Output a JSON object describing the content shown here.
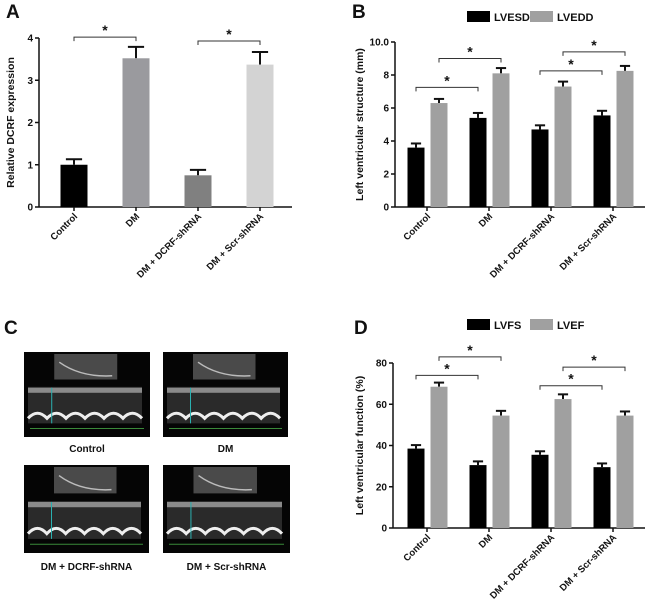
{
  "panels": {
    "a": "A",
    "b": "B",
    "c": "C",
    "d": "D"
  },
  "chart_data": [
    {
      "type": "bar",
      "panel": "A",
      "ylabel": "Relative DCRF expression",
      "ylim": [
        0,
        4
      ],
      "yticks": [
        "0",
        "1",
        "2",
        "3",
        "4"
      ],
      "categories": [
        "Control",
        "DM",
        "DM + DCRF-shRNA",
        "DM + Scr-shRNA"
      ],
      "series": [
        {
          "name": "",
          "values": [
            1.0,
            3.52,
            0.75,
            3.37
          ],
          "errors": [
            0.13,
            0.27,
            0.13,
            0.3
          ],
          "colors": [
            "#000000",
            "#9a9a9e",
            "#808080",
            "#d3d3d3"
          ]
        }
      ],
      "significance": [
        {
          "from": [
            0,
            0
          ],
          "to": [
            1,
            0
          ],
          "y": 4.02,
          "label": "*"
        },
        {
          "from": [
            2,
            0
          ],
          "to": [
            3,
            0
          ],
          "y": 3.93,
          "label": "*"
        }
      ]
    },
    {
      "type": "bar",
      "panel": "B",
      "ylabel": "Left ventricular structure (mm)",
      "ylim": [
        0,
        10
      ],
      "yticks": [
        "0",
        "2",
        "4",
        "6",
        "8",
        "10.0"
      ],
      "categories": [
        "Control",
        "DM",
        "DM + DCRF-shRNA",
        "DM + Scr-shRNA"
      ],
      "legend": "top",
      "series": [
        {
          "name": "LVESD",
          "color": "#000000",
          "values": [
            3.6,
            5.4,
            4.7,
            5.55
          ],
          "errors": [
            0.25,
            0.3,
            0.25,
            0.28
          ]
        },
        {
          "name": "LVEDD",
          "color": "#a0a0a0",
          "values": [
            6.3,
            8.1,
            7.3,
            8.25
          ],
          "errors": [
            0.25,
            0.32,
            0.3,
            0.3
          ]
        }
      ],
      "significance": [
        {
          "from": [
            0,
            0
          ],
          "to": [
            1,
            0
          ],
          "y": 7.25,
          "label": "*"
        },
        {
          "from": [
            0,
            1
          ],
          "to": [
            1,
            1
          ],
          "y": 9.0,
          "label": "*"
        },
        {
          "from": [
            2,
            0
          ],
          "to": [
            3,
            0
          ],
          "y": 8.25,
          "label": "*"
        },
        {
          "from": [
            2,
            1
          ],
          "to": [
            3,
            1
          ],
          "y": 9.4,
          "label": "*"
        }
      ]
    },
    {
      "type": "bar",
      "panel": "D",
      "ylabel": "Left ventricular function (%)",
      "ylim": [
        0,
        80
      ],
      "yticks": [
        "0",
        "20",
        "40",
        "60",
        "80"
      ],
      "categories": [
        "Control",
        "DM",
        "DM + DCRF-shRNA",
        "DM + Scr-shRNA"
      ],
      "legend": "top",
      "series": [
        {
          "name": "LVFS",
          "color": "#000000",
          "values": [
            38.5,
            30.5,
            35.5,
            29.5
          ],
          "errors": [
            1.7,
            1.8,
            1.7,
            1.8
          ]
        },
        {
          "name": "LVEF",
          "color": "#a0a0a0",
          "values": [
            68.5,
            54.5,
            62.5,
            54.5
          ],
          "errors": [
            2.0,
            2.3,
            2.3,
            2.0
          ]
        }
      ],
      "significance": [
        {
          "from": [
            0,
            0
          ],
          "to": [
            1,
            0
          ],
          "y": 74,
          "label": "*"
        },
        {
          "from": [
            0,
            1
          ],
          "to": [
            1,
            1
          ],
          "y": 83,
          "label": "*"
        },
        {
          "from": [
            2,
            0
          ],
          "to": [
            3,
            0
          ],
          "y": 69,
          "label": "*"
        },
        {
          "from": [
            2,
            1
          ],
          "to": [
            3,
            1
          ],
          "y": 78,
          "label": "*"
        }
      ]
    }
  ],
  "echo_panel": {
    "labels": [
      "Control",
      "DM",
      "DM + DCRF-shRNA",
      "DM + Scr-shRNA"
    ]
  }
}
